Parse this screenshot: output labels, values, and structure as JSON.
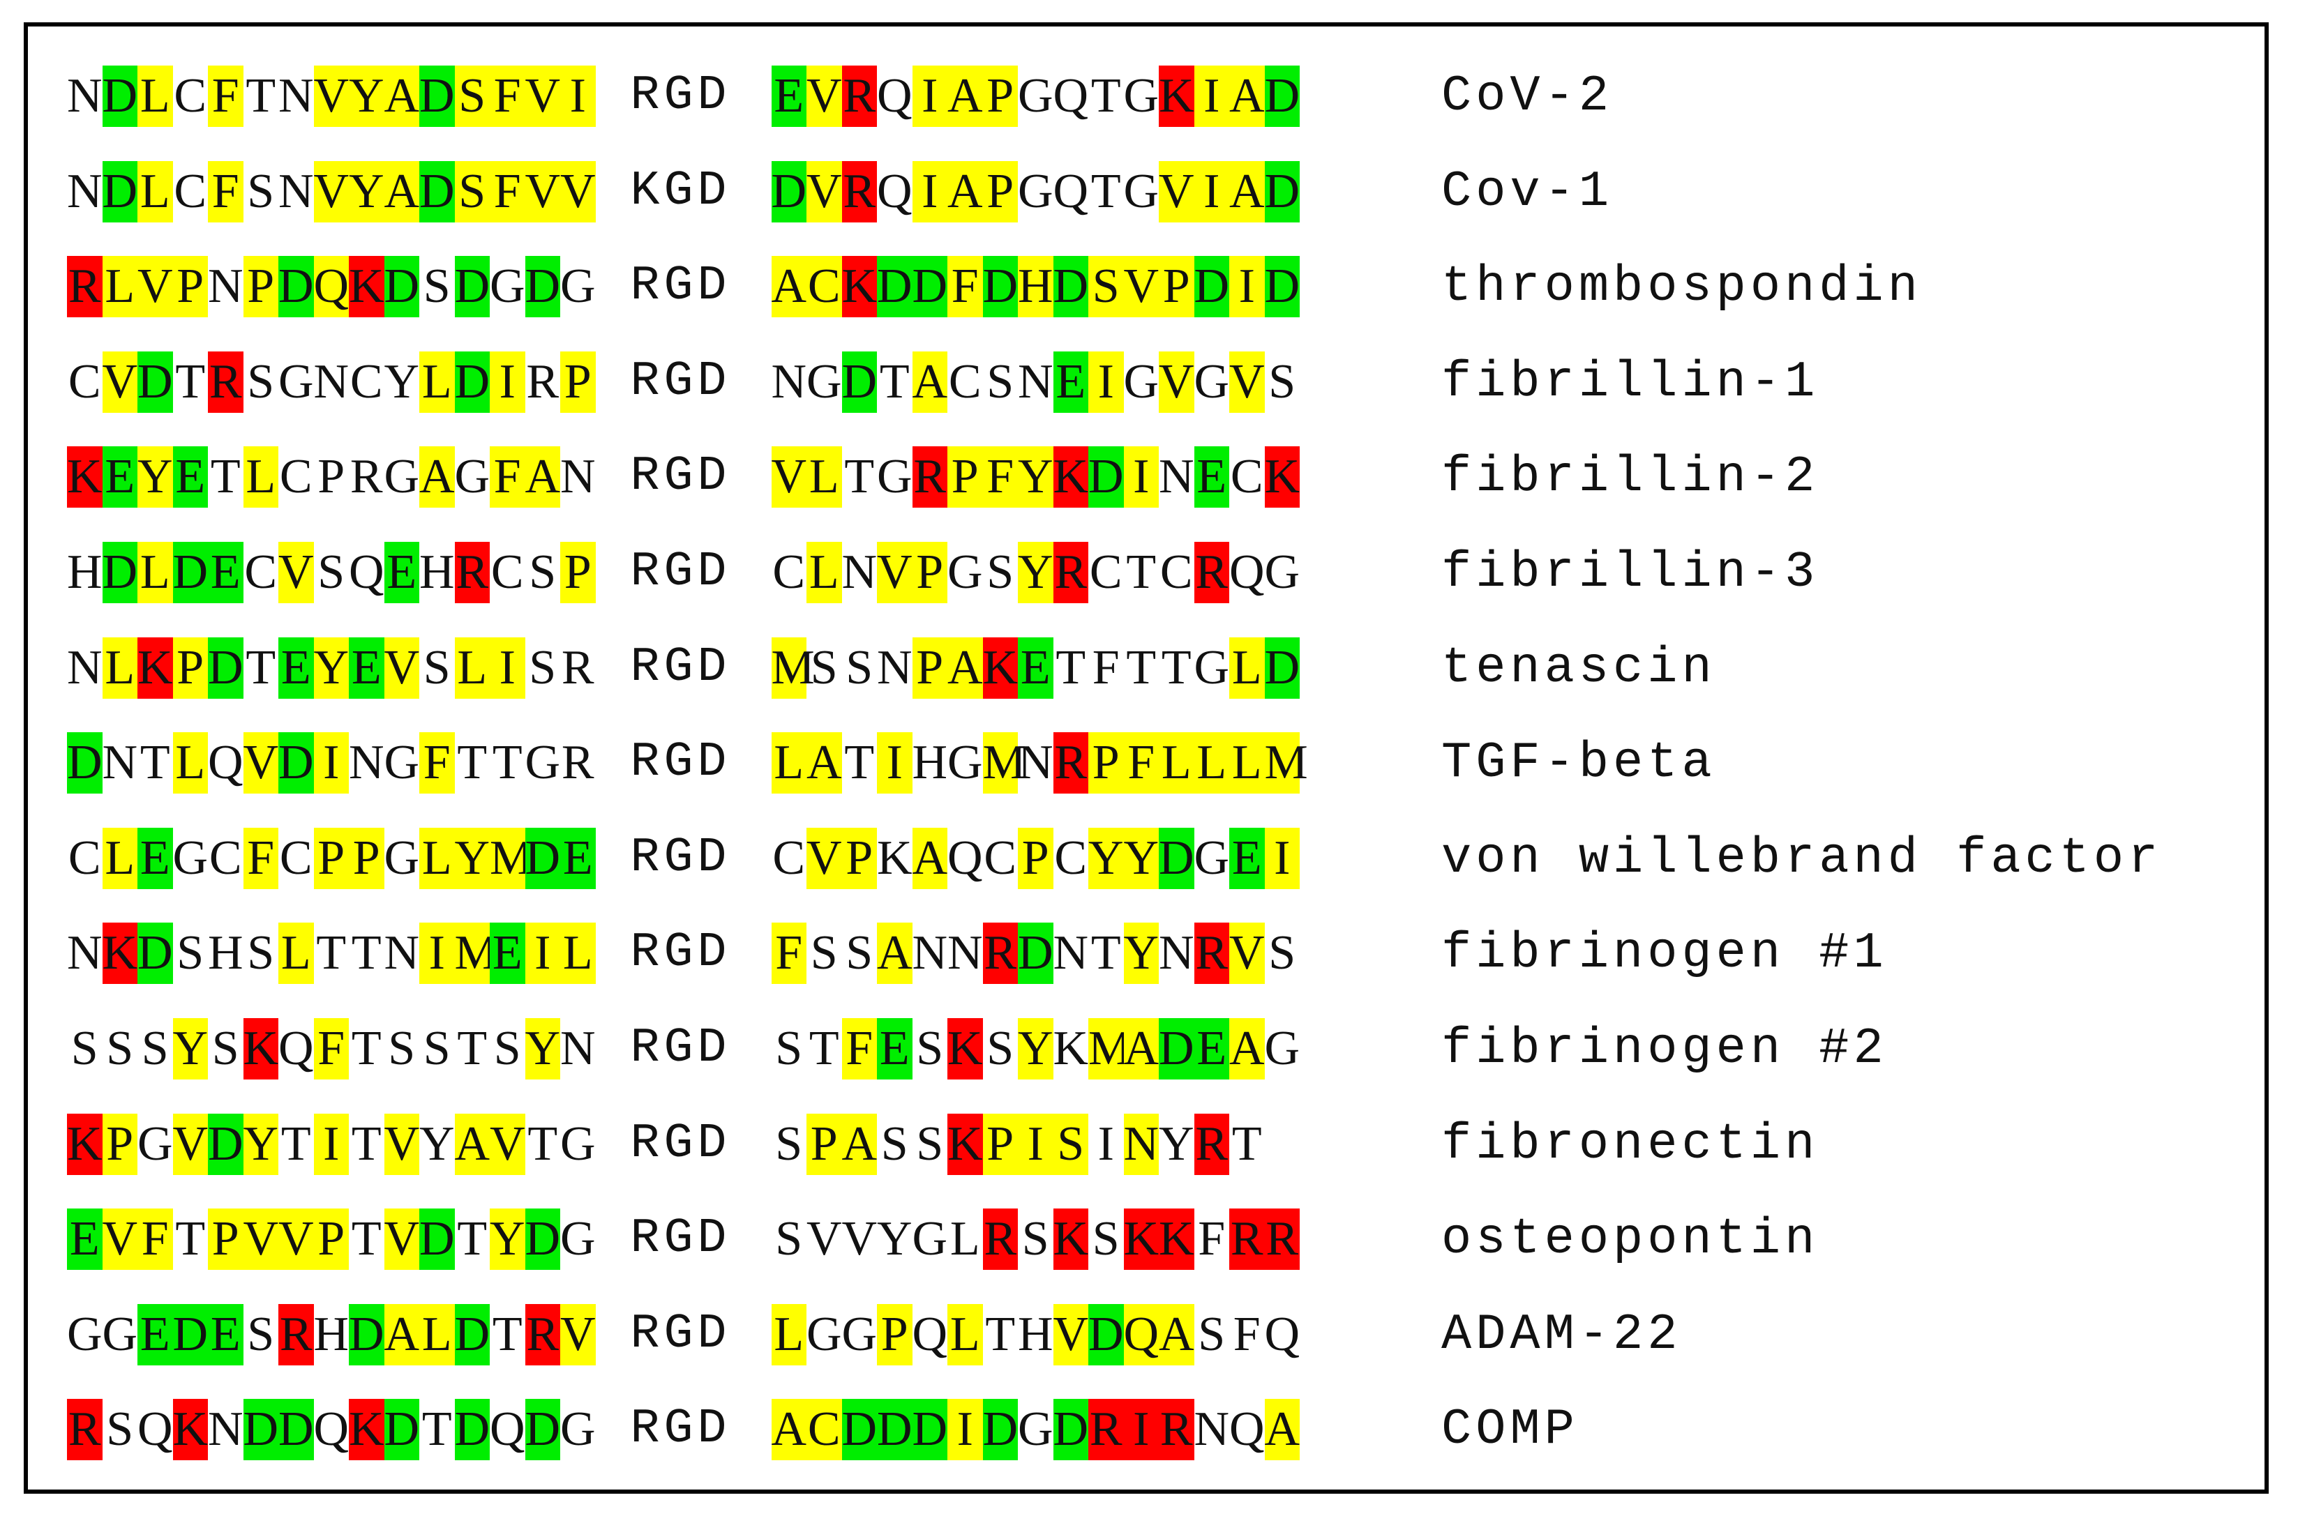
{
  "colors": {
    "yellow": "#ffff00",
    "green": "#00ee00",
    "red": "#ff0000"
  },
  "rows": [
    {
      "left": "NDLCFTNVYADSFVI",
      "left_colors": "-gy-y--yyygyyyy",
      "motif": "RGD",
      "right": "EVRQIAPGQTGKIAD",
      "right_colors": "gyr-yyy----ryyg",
      "label": "CoV-2"
    },
    {
      "left": "NDLCFSNVYADSFVV",
      "left_colors": "-gy-y--yyygyyyy",
      "motif": "KGD",
      "right": "DVRQIAPGQTGVIAD",
      "right_colors": "gyr-yyy----yyyg",
      "label": "Cov-1"
    },
    {
      "left": "RLVPNPDQKDSDGDG",
      "left_colors": "ryyy-ygyrg-g-g-",
      "motif": "RGD",
      "right": "ACKDDFDHDSVPDID",
      "right_colors": "yyrggygygyyygyg",
      "label": "thrombospondin"
    },
    {
      "left": "CVDTRSGNCYLDIRP",
      "left_colors": "-yg-r-----ygy-y",
      "motif": "RGD",
      "right": "NGDTACSNEIGVGVS",
      "right_colors": "--g-y---gy-y-y-",
      "label": "fibrillin-1"
    },
    {
      "left": "KEYETLCPRGAGFAN",
      "left_colors": "rgyg-y----y-yy-",
      "motif": "RGD",
      "right": "VLTGRPFYKDINECK",
      "right_colors": "yy--ryyyrgy-g-r",
      "label": "fibrillin-2"
    },
    {
      "left": "HDLDECVSQEHRCSP",
      "left_colors": "-gygg-y--g-r--y",
      "motif": "RGD",
      "right": "CLNVPGSYRCTCRQG",
      "right_colors": "-y-yy--yr---r--",
      "label": "fibrillin-3"
    },
    {
      "left": "NLKPDTEYEVSLISR",
      "left_colors": "-yryg-gygy-yy--",
      "motif": "RGD",
      "right": "MSSNPAKETFTTGLD",
      "right_colors": "y---yyrg-----yg",
      "label": "tenascin"
    },
    {
      "left": "DNTLQVDINGFTTGR",
      "left_colors": "g--y-ygy--y----",
      "motif": "RGD",
      "right": "LATIHGMNRPFLLLM",
      "right_colors": "yy-y--y-ryyyyyy",
      "label": "TGF-beta"
    },
    {
      "left": "CLEGCFCPPGLYMDE",
      "left_colors": "-yg--y-yy-yyygg",
      "motif": "RGD",
      "right": "CVPKAQCPCYYDGEI",
      "right_colors": "-yy-y--y-yyg-gy",
      "label": "von willebrand factor"
    },
    {
      "left": "NKDSHSLTTNIMEIL",
      "left_colors": "-rg---y---yygyy",
      "motif": "RGD",
      "right": "FSSANNRDNTYNRVS",
      "right_colors": "y--y--rg--y-ry-",
      "label": "fibrinogen #1"
    },
    {
      "left": "SSSYSKQFTSSTSYN",
      "left_colors": "---y-r-y-----y-",
      "motif": "RGD",
      "right": "STFESKSYKMADEAG",
      "right_colors": "--yg-r-y-yyggy-",
      "label": "fibrinogen #2"
    },
    {
      "left": "KPGVDYTITVYAVTG",
      "left_colors": "ry-ygy-y-y-yy--",
      "motif": "RGD",
      "right": "SPASSKPISINYRT",
      "right_colors": "-yy--ryyy-y-r-",
      "label": "fibronectin"
    },
    {
      "left": "EVFTPVVPTVDTYDG",
      "left_colors": "gyy-yyyy-yg-yg-",
      "motif": "RGD",
      "right": "SVVYGLRSKSKKFRR",
      "right_colors": "------r-r-rr-rr",
      "label": "osteopontin"
    },
    {
      "left": "GGEDESRHDALDTRV",
      "left_colors": "--ggg-r-gyyg-ry",
      "motif": "RGD",
      "right": "LGGPQLTHVDQASFQ",
      "right_colors": "y--y-y--ygyy---",
      "label": "ADAM-22"
    },
    {
      "left": "RSQKNDDQKDTDQDG",
      "left_colors": "r--r-gg-rg-g-g-",
      "motif": "RGD",
      "right": "ACDDDIDGDRIRNQA",
      "right_colors": "yygggyg-grrr--y",
      "label": "COMP"
    }
  ]
}
